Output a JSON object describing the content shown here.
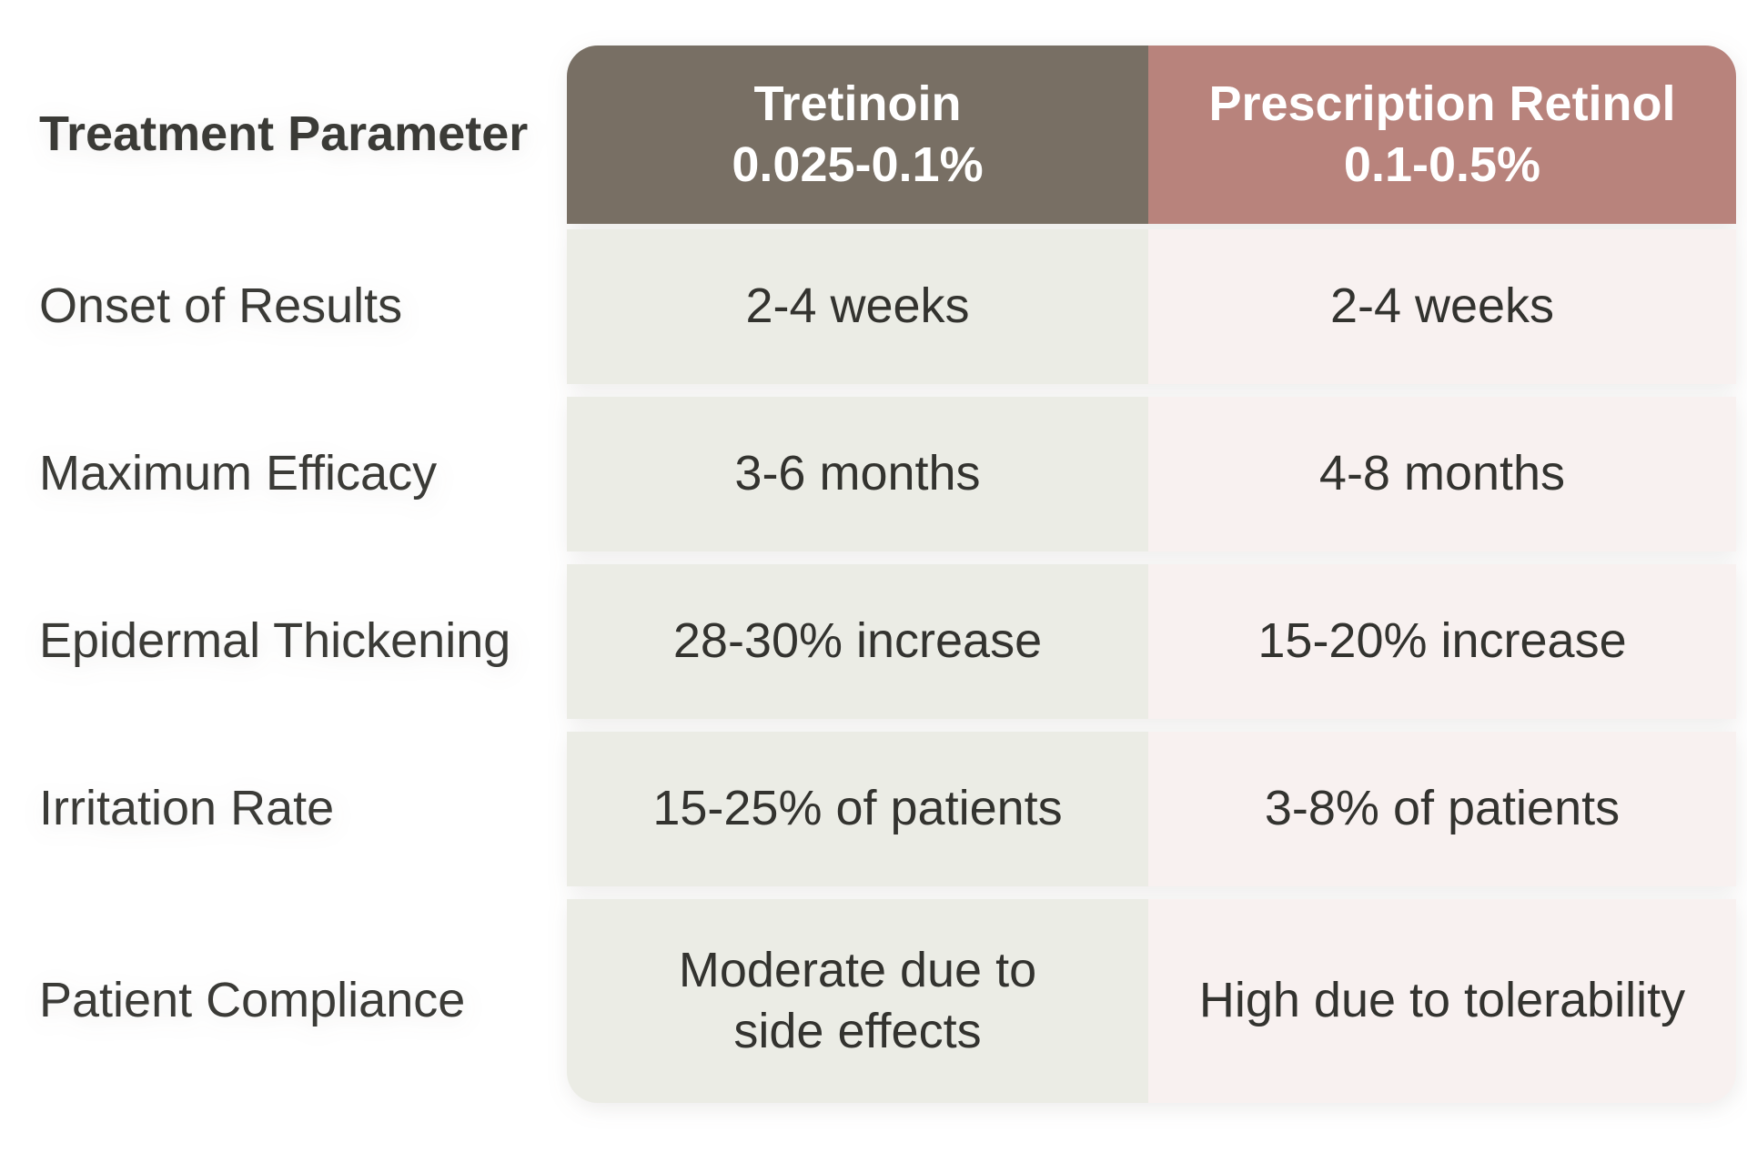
{
  "table": {
    "header": {
      "parameter_label": "Treatment Parameter",
      "tretinoin_label": "Tretinoin\n0.025-0.1%",
      "retinol_label": "Prescription Retinol\n0.1-0.5%"
    },
    "rows": [
      {
        "label": "Onset of Results",
        "tretinoin": "2-4 weeks",
        "retinol": "2-4 weeks"
      },
      {
        "label": "Maximum Efficacy",
        "tretinoin": "3-6 months",
        "retinol": "4-8 months"
      },
      {
        "label": "Epidermal Thickening",
        "tretinoin": "28-30% increase",
        "retinol": "15-20% increase"
      },
      {
        "label": "Irritation Rate",
        "tretinoin": "15-25% of patients",
        "retinol": "3-8% of patients"
      },
      {
        "label": "Patient Compliance",
        "tretinoin": "Moderate due to\nside effects",
        "retinol": "High due to tolerability"
      }
    ],
    "colors": {
      "header_tretinoin_bg": "#786f64",
      "header_retinol_bg": "#b8837c",
      "tretinoin_cell_bg": "#ebece5",
      "retinol_cell_bg": "#f8f1f0",
      "header_text": "#ffffff",
      "label_text": "#3b3b37",
      "value_text": "#33332f"
    }
  },
  "chart_data": {
    "type": "table",
    "title": "",
    "columns": [
      "Treatment Parameter",
      "Tretinoin 0.025-0.1%",
      "Prescription Retinol 0.1-0.5%"
    ],
    "rows": [
      [
        "Onset of Results",
        "2-4 weeks",
        "2-4 weeks"
      ],
      [
        "Maximum Efficacy",
        "3-6 months",
        "4-8 months"
      ],
      [
        "Epidermal Thickening",
        "28-30% increase",
        "15-20% increase"
      ],
      [
        "Irritation Rate",
        "15-25% of patients",
        "3-8% of patients"
      ],
      [
        "Patient Compliance",
        "Moderate due to side effects",
        "High due to tolerability"
      ]
    ],
    "layout_hints": {
      "tretinoin_column_accent": "#786f64",
      "retinol_column_accent": "#b8837c",
      "row_striping": "none",
      "rows_separated_by_white_gaps": true
    }
  }
}
